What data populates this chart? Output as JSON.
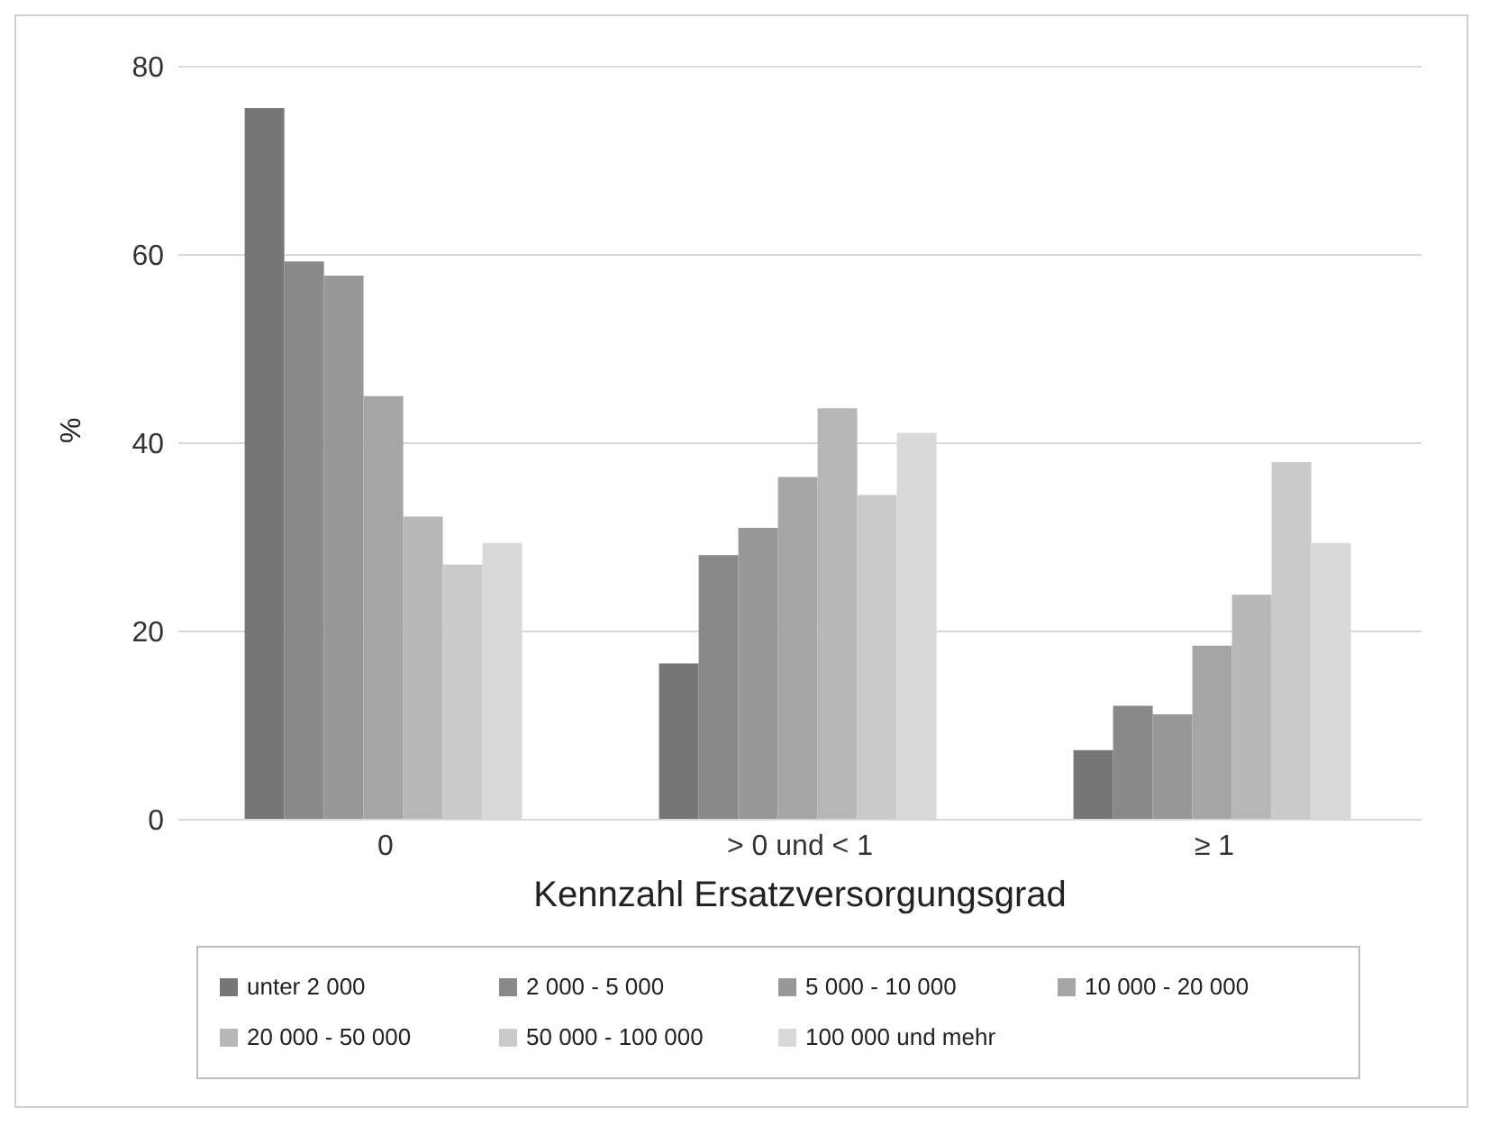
{
  "chart_data": {
    "type": "bar",
    "xlabel": "Kennzahl Ersatzversorgungsgrad",
    "ylabel": "%",
    "categories": [
      "0",
      "> 0 und < 1",
      "≥ 1"
    ],
    "series": [
      {
        "name": "unter 2 000",
        "color": "#767676",
        "values": [
          75.6,
          16.6,
          7.4
        ]
      },
      {
        "name": "2 000 - 5 000",
        "color": "#898989",
        "values": [
          59.3,
          28.1,
          12.1
        ]
      },
      {
        "name": "5 000 - 10 000",
        "color": "#989898",
        "values": [
          57.8,
          31.0,
          11.2
        ]
      },
      {
        "name": "10 000 - 20 000",
        "color": "#a5a5a5",
        "values": [
          45.0,
          36.4,
          18.5
        ]
      },
      {
        "name": "20 000 - 50 000",
        "color": "#b7b7b7",
        "values": [
          32.2,
          43.7,
          23.9
        ]
      },
      {
        "name": "50 000 - 100 000",
        "color": "#cacaca",
        "values": [
          27.1,
          34.5,
          38.0
        ]
      },
      {
        "name": "100 000 und mehr",
        "color": "#d9d9d9",
        "values": [
          29.4,
          41.1,
          29.4
        ]
      }
    ],
    "ylim": [
      0,
      80
    ],
    "yticks": [
      0,
      20,
      40,
      60,
      80
    ],
    "grid": "y",
    "legend": "bottom"
  }
}
